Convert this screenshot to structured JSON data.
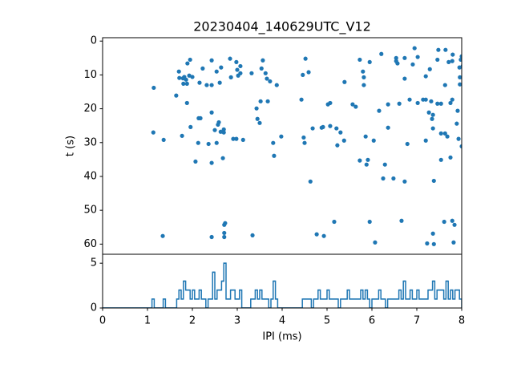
{
  "chart_data": [
    {
      "type": "scatter",
      "title": "20230404_140629UTC_V12",
      "ylabel": "t (s)",
      "color": "#1f77b4",
      "x": [
        1.14,
        1.13,
        1.36,
        1.34,
        1.64,
        1.7,
        1.71,
        1.79,
        1.82,
        1.86,
        1.8,
        1.88,
        1.89,
        1.95,
        1.93,
        2.0,
        1.88,
        1.77,
        1.96,
        2.07,
        2.13,
        2.14,
        2.18,
        2.16,
        2.23,
        2.32,
        2.43,
        2.36,
        2.43,
        2.43,
        2.43,
        2.43,
        2.5,
        2.54,
        2.57,
        2.59,
        2.61,
        2.63,
        2.54,
        2.64,
        2.7,
        2.7,
        2.68,
        2.71,
        2.73,
        2.71,
        2.71,
        2.84,
        2.86,
        2.91,
        2.98,
        2.98,
        3.0,
        3.02,
        3.07,
        3.07,
        3.13,
        3.32,
        3.34,
        3.43,
        3.45,
        3.5,
        3.52,
        3.54,
        3.57,
        3.63,
        3.66,
        3.68,
        3.73,
        3.8,
        3.82,
        3.88,
        3.98,
        4.43,
        4.46,
        4.48,
        4.5,
        4.52,
        4.59,
        4.63,
        4.68,
        4.77,
        4.88,
        4.91,
        4.93,
        5.02,
        5.07,
        5.07,
        5.16,
        5.21,
        5.23,
        5.3,
        5.38,
        5.39,
        5.57,
        5.64,
        5.73,
        5.73,
        5.8,
        5.82,
        5.82,
        5.86,
        5.88,
        5.91,
        5.95,
        5.95,
        6.04,
        6.07,
        6.16,
        6.21,
        6.25,
        6.29,
        6.36,
        6.36,
        6.48,
        6.54,
        6.54,
        6.57,
        6.61,
        6.66,
        6.73,
        6.73,
        6.73,
        6.79,
        6.84,
        6.91,
        6.95,
        7.02,
        7.02,
        7.14,
        7.2,
        7.2,
        7.2,
        7.23,
        7.27,
        7.29,
        7.32,
        7.36,
        7.38,
        7.38,
        7.34,
        7.36,
        7.36,
        7.46,
        7.46,
        7.48,
        7.54,
        7.54,
        7.54,
        7.61,
        7.63,
        7.63,
        7.64,
        7.68,
        7.71,
        7.75,
        7.75,
        7.79,
        7.8,
        7.79,
        7.79,
        7.82,
        7.84,
        7.89,
        7.91,
        7.93,
        7.95,
        7.98,
        7.96,
        7.96,
        8.0,
        8.0,
        8.02
      ],
      "y": [
        13.8,
        27.0,
        29.2,
        57.6,
        16.1,
        9.0,
        10.9,
        11.0,
        10.6,
        11.4,
        12.6,
        12.6,
        6.6,
        5.5,
        10.2,
        10.6,
        18.3,
        28.0,
        25.4,
        35.6,
        30.1,
        22.8,
        22.8,
        12.3,
        8.1,
        13.0,
        5.7,
        30.4,
        13.0,
        36.0,
        21.1,
        57.9,
        26.3,
        9.0,
        24.7,
        24.0,
        12.3,
        26.8,
        30.1,
        7.8,
        26.1,
        27.0,
        34.6,
        54.3,
        53.8,
        56.7,
        57.9,
        5.2,
        10.7,
        28.9,
        6.2,
        28.9,
        8.5,
        10.2,
        7.4,
        9.5,
        29.2,
        9.5,
        57.4,
        19.9,
        23.0,
        24.2,
        17.8,
        8.1,
        5.7,
        9.5,
        11.1,
        17.8,
        11.9,
        30.1,
        33.9,
        13.0,
        28.2,
        17.3,
        10.0,
        28.5,
        30.1,
        5.2,
        9.2,
        41.5,
        25.8,
        57.1,
        25.6,
        25.4,
        57.6,
        18.7,
        18.3,
        25.1,
        53.4,
        25.8,
        30.8,
        27.0,
        29.4,
        12.1,
        18.7,
        19.4,
        5.5,
        35.3,
        9.0,
        10.7,
        13.0,
        28.2,
        36.5,
        35.1,
        53.4,
        6.2,
        29.4,
        59.5,
        20.6,
        3.8,
        40.6,
        36.5,
        18.7,
        25.6,
        40.6,
        5.9,
        5.0,
        6.6,
        18.5,
        53.1,
        5.0,
        11.1,
        41.5,
        30.4,
        17.3,
        6.9,
        2.1,
        4.7,
        18.3,
        17.3,
        10.4,
        29.4,
        17.3,
        59.8,
        21.1,
        8.3,
        17.8,
        56.9,
        60.0,
        41.3,
        23.0,
        21.8,
        25.8,
        5.5,
        18.5,
        2.6,
        18.5,
        27.3,
        35.1,
        53.4,
        27.3,
        13.0,
        2.6,
        28.2,
        6.2,
        34.4,
        18.3,
        5.9,
        4.0,
        17.3,
        53.1,
        59.5,
        54.3,
        24.4,
        20.6,
        28.9,
        7.8,
        5.5,
        10.7,
        12.8,
        31.1,
        4.5,
        7.4
      ],
      "xlim": [
        0,
        8
      ],
      "ylim": [
        63,
        -1
      ],
      "yticks": [
        0,
        10,
        20,
        30,
        40,
        50,
        60
      ]
    },
    {
      "type": "histogram",
      "xlabel": "IPI (ms)",
      "color": "#1f77b4",
      "bins": [
        0,
        0.05,
        0.1,
        0.15,
        0.2,
        0.25,
        0.3,
        0.35,
        0.4,
        0.45,
        0.5,
        0.55,
        0.6,
        0.65,
        0.7,
        0.75,
        0.8,
        0.85,
        0.9,
        0.95,
        1,
        1.05,
        1.1,
        1.15,
        1.2,
        1.25,
        1.3,
        1.35,
        1.4,
        1.45,
        1.5,
        1.55,
        1.6,
        1.65,
        1.7,
        1.75,
        1.8,
        1.85,
        1.9,
        1.95,
        2,
        2.05,
        2.1,
        2.15,
        2.2,
        2.25,
        2.3,
        2.35,
        2.4,
        2.45,
        2.5,
        2.55,
        2.6,
        2.65,
        2.7,
        2.75,
        2.8,
        2.85,
        2.9,
        2.95,
        3,
        3.05,
        3.1,
        3.15,
        3.2,
        3.25,
        3.3,
        3.35,
        3.4,
        3.45,
        3.5,
        3.55,
        3.6,
        3.65,
        3.7,
        3.75,
        3.8,
        3.85,
        3.9,
        3.95,
        4,
        4.05,
        4.1,
        4.15,
        4.2,
        4.25,
        4.3,
        4.35,
        4.4,
        4.45,
        4.5,
        4.55,
        4.6,
        4.65,
        4.7,
        4.75,
        4.8,
        4.85,
        4.9,
        4.95,
        5,
        5.05,
        5.1,
        5.15,
        5.2,
        5.25,
        5.3,
        5.35,
        5.4,
        5.45,
        5.5,
        5.55,
        5.6,
        5.65,
        5.7,
        5.75,
        5.8,
        5.85,
        5.9,
        5.95,
        6,
        6.05,
        6.1,
        6.15,
        6.2,
        6.25,
        6.3,
        6.35,
        6.4,
        6.45,
        6.5,
        6.55,
        6.6,
        6.65,
        6.7,
        6.75,
        6.8,
        6.85,
        6.9,
        6.95,
        7,
        7.05,
        7.1,
        7.15,
        7.2,
        7.25,
        7.3,
        7.35,
        7.4,
        7.45,
        7.5,
        7.55,
        7.6,
        7.65,
        7.7,
        7.75,
        7.8,
        7.85,
        7.9,
        7.95,
        8
      ],
      "counts": [
        0,
        0,
        0,
        0,
        0,
        0,
        0,
        0,
        0,
        0,
        0,
        0,
        0,
        0,
        0,
        0,
        0,
        0,
        0,
        0,
        0,
        0,
        1,
        0,
        0,
        0,
        0,
        1,
        0,
        0,
        0,
        0,
        0,
        1,
        2,
        1,
        3,
        2,
        2,
        1,
        2,
        1,
        1,
        2,
        1,
        1,
        0,
        1,
        1,
        4,
        1,
        2,
        2,
        3,
        5,
        1,
        1,
        2,
        2,
        1,
        1,
        2,
        0,
        0,
        0,
        0,
        1,
        1,
        2,
        1,
        2,
        1,
        1,
        1,
        0,
        1,
        3,
        1,
        0,
        0,
        0,
        0,
        0,
        0,
        0,
        0,
        0,
        0,
        0,
        1,
        1,
        1,
        1,
        0,
        1,
        1,
        2,
        1,
        1,
        1,
        2,
        1,
        1,
        1,
        1,
        0,
        1,
        1,
        1,
        2,
        1,
        1,
        1,
        1,
        1,
        2,
        1,
        2,
        1,
        0,
        1,
        1,
        1,
        2,
        1,
        1,
        0,
        1,
        1,
        1,
        1,
        1,
        2,
        1,
        3,
        1,
        1,
        2,
        1,
        1,
        2,
        1,
        1,
        1,
        1,
        2,
        2,
        3,
        1,
        2,
        2,
        2,
        1,
        3,
        1,
        2,
        1,
        2,
        2,
        1
      ],
      "xlim": [
        0,
        8
      ],
      "xticks": [
        0,
        1,
        2,
        3,
        4,
        5,
        6,
        7,
        8
      ],
      "ylim": [
        0,
        6
      ],
      "yticks": [
        0,
        5
      ]
    }
  ]
}
